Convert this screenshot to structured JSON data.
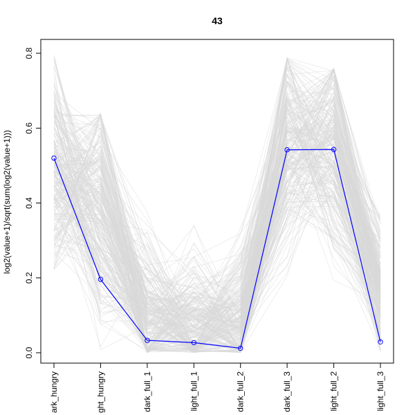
{
  "chart_data": {
    "type": "line",
    "title": "43",
    "xlabel": "",
    "ylabel": "log2(value+1)/sqrt(sum(log2(value+1)))",
    "categories": [
      "dark_hungry",
      "light_hungry",
      "dark_full_1",
      "light_full_1",
      "dark_full_2",
      "dark_full_3",
      "light_full_2",
      "light_full_3"
    ],
    "category_display_labels": [
      "ark_hungry",
      "ght_hungry",
      "dark_full_1",
      "light_full_1",
      "dark_full_2",
      "dark_full_3",
      "light_full_2",
      "light_full_3"
    ],
    "y_ticks": [
      0.0,
      0.2,
      0.4,
      0.6,
      0.8
    ],
    "y_tick_labels": [
      "0.0",
      "0.2",
      "0.4",
      "0.6",
      "0.8"
    ],
    "ylim": [
      -0.03,
      0.84
    ],
    "highlight_series": {
      "values": [
        0.52,
        0.196,
        0.033,
        0.027,
        0.012,
        0.542,
        0.543,
        0.029
      ],
      "color": "#0000ff"
    },
    "background_series": {
      "color": "#d9d9d9",
      "count": 260,
      "profile_lower": [
        0.22,
        0.0,
        0.0,
        0.0,
        0.0,
        0.18,
        0.18,
        0.0
      ],
      "profile_upper": [
        0.8,
        0.64,
        0.38,
        0.35,
        0.34,
        0.79,
        0.76,
        0.37
      ],
      "profile_mean": [
        0.5,
        0.38,
        0.1,
        0.07,
        0.07,
        0.55,
        0.55,
        0.17
      ]
    },
    "grid": false,
    "legend": "none"
  }
}
